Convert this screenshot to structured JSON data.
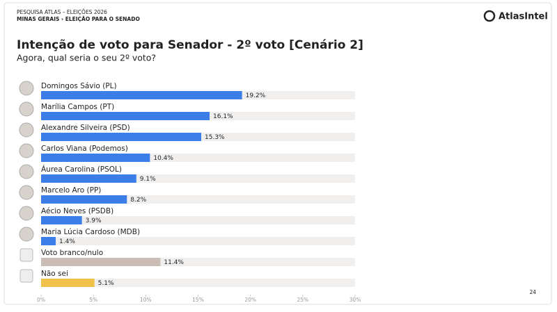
{
  "chart_data": {
    "type": "hbar",
    "kicker": [
      "PESQUISA ATLAS – ELEIÇÕES 2026",
      "MINAS GERAIS › ELEIÇÃO PARA O SENADO"
    ],
    "logo": "AtlasIntel",
    "title": "Intenção de voto para Senador - 2º voto [Cenário 2]",
    "subtitle": "Agora, qual seria o seu 2º voto?",
    "page_number": "24",
    "categories": [
      "Domingos Sávio (PL)",
      "Marília Campos (PT)",
      "Alexandre Silveira (PSD)",
      "Carlos Viana (Podemos)",
      "Áurea Carolina (PSOL)",
      "Marcelo Aro (PP)",
      "Aécio Neves (PSDB)",
      "Maria Lúcia Cardoso (MDB)",
      "Voto branco/nulo",
      "Não sei"
    ],
    "values": [
      19.2,
      16.1,
      15.3,
      10.4,
      9.1,
      8.2,
      3.9,
      1.4,
      11.4,
      5.1
    ],
    "value_labels": [
      "19.2%",
      "16.1%",
      "15.3%",
      "10.4%",
      "9.1%",
      "8.2%",
      "3.9%",
      "1.4%",
      "11.4%",
      "5.1%"
    ],
    "colors": [
      "#3b7ee8",
      "#3b7ee8",
      "#3b7ee8",
      "#3b7ee8",
      "#3b7ee8",
      "#3b7ee8",
      "#3b7ee8",
      "#3b7ee8",
      "#c9bdb6",
      "#f1c24a"
    ],
    "xlim": [
      0,
      30
    ],
    "xticks": [
      {
        "value": 0,
        "label": "0%"
      },
      {
        "value": 5,
        "label": "5%"
      },
      {
        "value": 10,
        "label": "10%"
      },
      {
        "value": 15,
        "label": "15%"
      },
      {
        "value": 20,
        "label": "20%"
      },
      {
        "value": 25,
        "label": "25%"
      },
      {
        "value": 30,
        "label": "30%"
      }
    ]
  }
}
